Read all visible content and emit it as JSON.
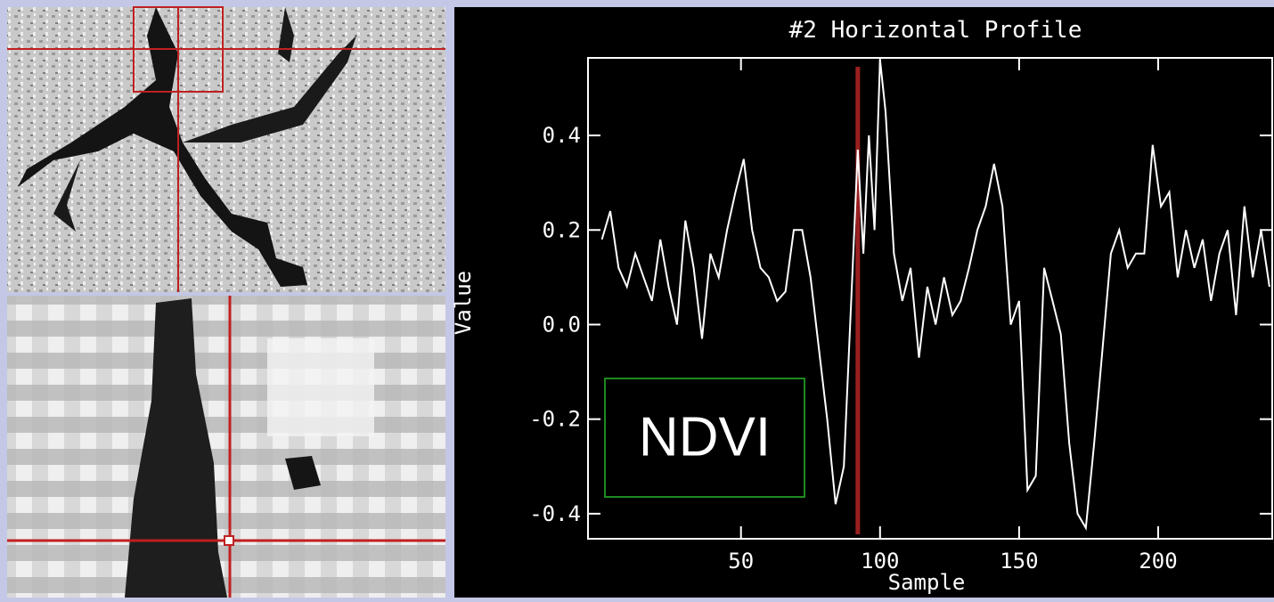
{
  "chart_data": {
    "type": "line",
    "title": "#2 Horizontal Profile",
    "x_label": "Sample",
    "y_label": "Value",
    "annotation": "NDVI",
    "color": "#ffffff",
    "cursor_x": 92,
    "cursor_color": "#9a2020",
    "x": [
      0,
      3,
      6,
      9,
      12,
      15,
      18,
      21,
      24,
      27,
      30,
      33,
      36,
      39,
      42,
      45,
      48,
      51,
      54,
      57,
      60,
      63,
      66,
      69,
      72,
      75,
      78,
      81,
      84,
      87,
      90,
      92,
      94,
      96,
      98,
      100,
      102,
      105,
      108,
      111,
      114,
      117,
      120,
      123,
      126,
      129,
      132,
      135,
      138,
      141,
      144,
      147,
      150,
      153,
      156,
      159,
      162,
      165,
      168,
      171,
      174,
      177,
      180,
      183,
      186,
      189,
      192,
      195,
      198,
      201,
      204,
      207,
      210,
      213,
      216,
      219,
      222,
      225,
      228,
      231,
      234,
      237,
      240
    ],
    "values": [
      0.18,
      0.24,
      0.12,
      0.08,
      0.15,
      0.1,
      0.05,
      0.18,
      0.08,
      0.0,
      0.22,
      0.12,
      -0.03,
      0.15,
      0.1,
      0.2,
      0.28,
      0.35,
      0.2,
      0.12,
      0.1,
      0.05,
      0.07,
      0.2,
      0.2,
      0.1,
      -0.05,
      -0.2,
      -0.38,
      -0.3,
      0.1,
      0.37,
      0.15,
      0.4,
      0.2,
      0.56,
      0.45,
      0.15,
      0.05,
      0.12,
      -0.07,
      0.08,
      0.0,
      0.1,
      0.02,
      0.05,
      0.12,
      0.2,
      0.25,
      0.34,
      0.25,
      0.0,
      0.05,
      -0.35,
      -0.32,
      0.12,
      0.05,
      -0.02,
      -0.25,
      -0.4,
      -0.43,
      -0.25,
      -0.05,
      0.15,
      0.2,
      0.12,
      0.15,
      0.15,
      0.38,
      0.25,
      0.28,
      0.1,
      0.2,
      0.12,
      0.18,
      0.05,
      0.15,
      0.2,
      0.02,
      0.25,
      0.1,
      0.2,
      0.08
    ],
    "xlim": [
      -5,
      241
    ],
    "ylim": [
      -0.453,
      0.564
    ],
    "xticks": [
      50,
      100,
      150,
      200
    ],
    "yticks": [
      -0.4,
      -0.2,
      {
        "value": 0,
        "label": "0.0"
      },
      0.2,
      0.4
    ]
  }
}
